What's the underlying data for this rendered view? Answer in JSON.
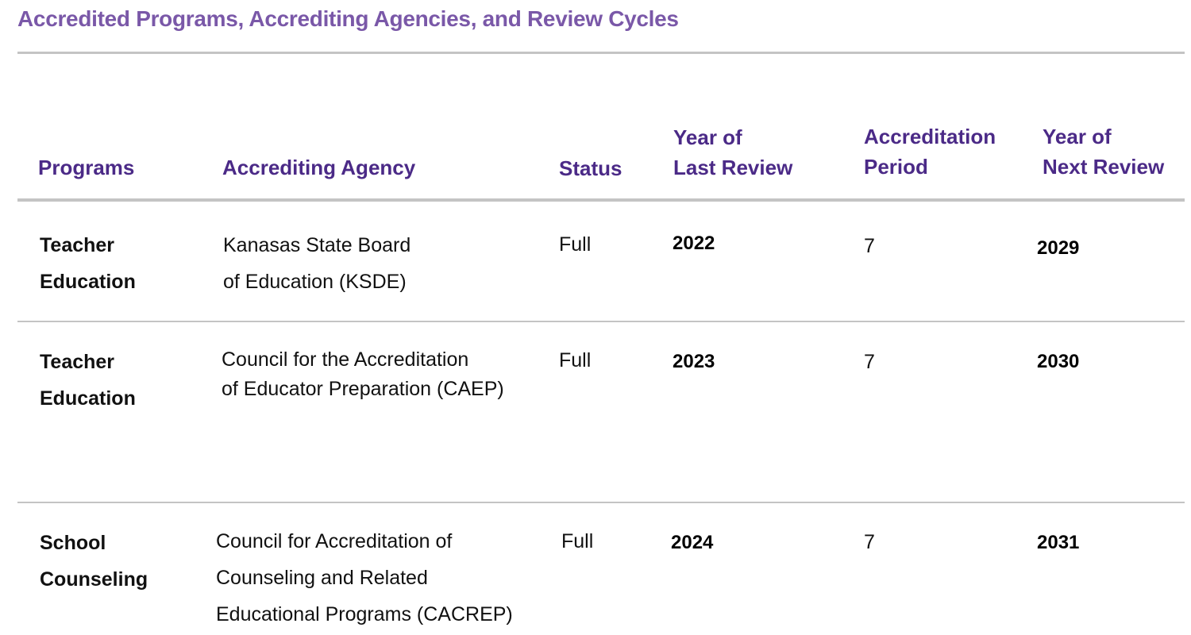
{
  "title": "Accredited Programs, Accrediting Agencies, and Review Cycles",
  "headers": {
    "programs": "Programs",
    "agency": "Accrediting Agency",
    "status": "Status",
    "last_review": "Year of\nLast Review",
    "period": "Accreditation\nPeriod",
    "next_review": "Year of\nNext Review"
  },
  "rows": [
    {
      "program": "Teacher\nEducation",
      "agency": "Kanasas State Board\nof Education (KSDE)",
      "status": "Full",
      "last_review": "2022",
      "period": "7",
      "next_review": "2029"
    },
    {
      "program": "Teacher\nEducation",
      "agency": "Council for the Accreditation\nof Educator Preparation (CAEP)",
      "status": "Full",
      "last_review": "2023",
      "period": "7",
      "next_review": "2030"
    },
    {
      "program": "School\nCounseling",
      "agency": "Council for Accreditation of\nCounseling and Related\nEducational Programs (CACREP)",
      "status": "Full",
      "last_review": "2024",
      "period": "7",
      "next_review": "2031"
    }
  ]
}
